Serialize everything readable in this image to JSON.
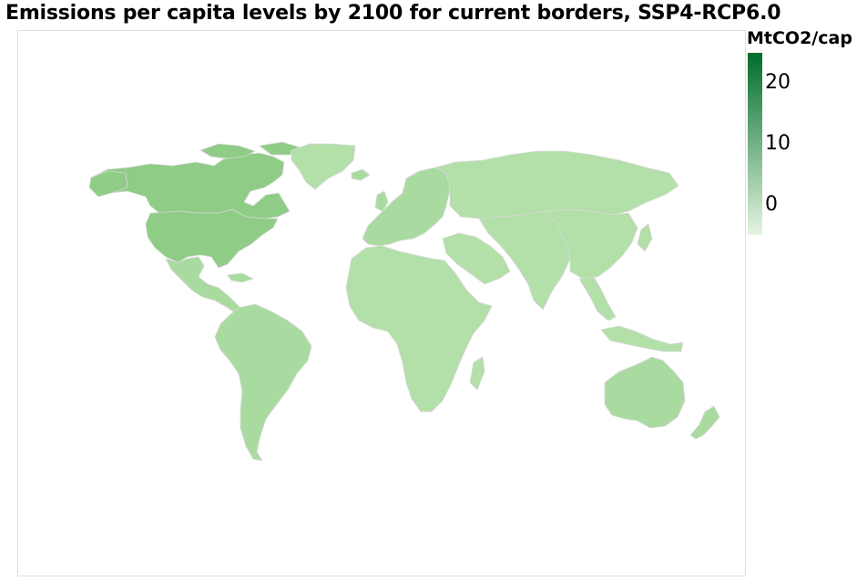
{
  "title": "Emissions per capita levels by 2100 for current borders, SSP4-RCP6.0",
  "legend": {
    "title": "MtCO2/cap",
    "min_color": "#e5f5e0",
    "max_color": "#006d2c",
    "ticks": [
      {
        "label": "20",
        "value": 20
      },
      {
        "label": "10",
        "value": 10
      },
      {
        "label": "0",
        "value": 0
      }
    ],
    "range": [
      -5,
      25
    ]
  },
  "colors": {
    "north_america": "#8fcc86",
    "high": "#99d28f",
    "mid": "#a9dba0",
    "low": "#b3dfa9",
    "border": "#d9d9d9"
  }
}
